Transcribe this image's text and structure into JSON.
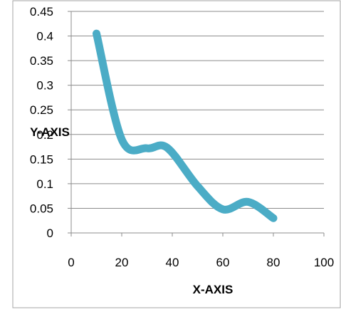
{
  "chart_data": {
    "type": "line",
    "title": "",
    "xlabel": "X-AXIS",
    "ylabel": "Y-AXIS",
    "xlim": [
      0,
      100
    ],
    "ylim": [
      0,
      0.45
    ],
    "x_ticks": [
      "0",
      "20",
      "40",
      "60",
      "80",
      "100"
    ],
    "y_ticks": [
      "0",
      "0.05",
      "0.1",
      "0.15",
      "0.2",
      "0.25",
      "0.3",
      "0.35",
      "0.4",
      "0.45"
    ],
    "grid": true,
    "legend": "none",
    "series": [
      {
        "color": "#4BACC6",
        "smooth": true,
        "points": [
          {
            "x": 10,
            "y": 0.405
          },
          {
            "x": 20,
            "y": 0.19
          },
          {
            "x": 30,
            "y": 0.172
          },
          {
            "x": 38,
            "y": 0.173
          },
          {
            "x": 50,
            "y": 0.095
          },
          {
            "x": 60,
            "y": 0.048
          },
          {
            "x": 70,
            "y": 0.063
          },
          {
            "x": 80,
            "y": 0.03
          }
        ]
      }
    ]
  }
}
